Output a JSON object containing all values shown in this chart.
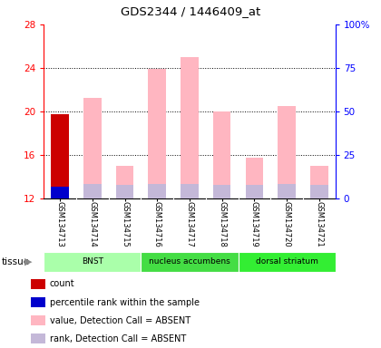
{
  "title": "GDS2344 / 1446409_at",
  "samples": [
    "GSM134713",
    "GSM134714",
    "GSM134715",
    "GSM134716",
    "GSM134717",
    "GSM134718",
    "GSM134719",
    "GSM134720",
    "GSM134721"
  ],
  "ylim_left": [
    12,
    28
  ],
  "ylim_right": [
    0,
    100
  ],
  "yticks_left": [
    12,
    16,
    20,
    24,
    28
  ],
  "yticks_right": [
    0,
    25,
    50,
    75,
    100
  ],
  "value_absent": [
    19.7,
    21.2,
    15.0,
    23.9,
    25.0,
    20.0,
    15.7,
    20.5,
    15.0
  ],
  "rank_absent": [
    13.2,
    13.3,
    13.2,
    13.3,
    13.3,
    13.2,
    13.2,
    13.3,
    13.2
  ],
  "count_value": 19.7,
  "percentile_rank_value": 13.1,
  "color_value_absent": "#FFB6C1",
  "color_rank_absent": "#C4B8D8",
  "color_count": "#CC0000",
  "color_percentile": "#0000CC",
  "background_color": "#ffffff",
  "plot_bg_color": "#ffffff",
  "sample_bg_color": "#C8C8C8",
  "tissue_groups": [
    {
      "label": "BNST",
      "count": 3,
      "color": "#AAFFAA"
    },
    {
      "label": "nucleus accumbens",
      "count": 3,
      "color": "#44DD44"
    },
    {
      "label": "dorsal striatum",
      "count": 3,
      "color": "#33EE33"
    }
  ],
  "legend_items": [
    {
      "color": "#CC0000",
      "label": "count"
    },
    {
      "color": "#0000CC",
      "label": "percentile rank within the sample"
    },
    {
      "color": "#FFB6C1",
      "label": "value, Detection Call = ABSENT"
    },
    {
      "color": "#C4B8D8",
      "label": "rank, Detection Call = ABSENT"
    }
  ]
}
